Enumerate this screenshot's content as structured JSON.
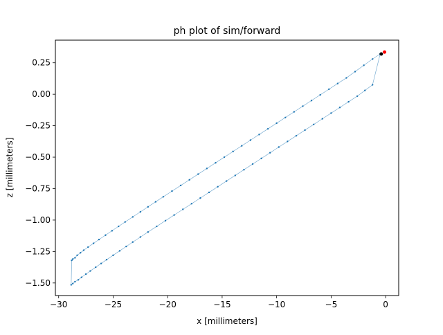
{
  "chart_data": {
    "type": "scatter",
    "title": "ph plot of sim/forward",
    "xlabel": "x [millimeters]",
    "ylabel": "z [millimeters]",
    "xlim": [
      -30.3,
      1.2
    ],
    "ylim": [
      -1.6,
      0.43
    ],
    "xticks": [
      -30,
      -25,
      -20,
      -15,
      -10,
      -5,
      0
    ],
    "yticks": [
      -1.5,
      -1.25,
      -1.0,
      -0.75,
      -0.5,
      -0.25,
      0.0,
      0.25
    ],
    "xtick_labels": [
      "−30",
      "−25",
      "−20",
      "−15",
      "−10",
      "−5",
      "0"
    ],
    "ytick_labels": [
      "−1.50",
      "−1.25",
      "−1.00",
      "−0.75",
      "−0.50",
      "−0.25",
      "0.00",
      "0.25"
    ],
    "grid": false,
    "series": [
      {
        "role": "trajectory",
        "color": "#1f77b4",
        "connected": true,
        "x": [
          -0.5,
          -1.2,
          -2.0,
          -2.8,
          -3.6,
          -4.4,
          -5.2,
          -6.0,
          -6.8,
          -7.6,
          -8.4,
          -9.2,
          -10.0,
          -10.8,
          -11.6,
          -12.4,
          -13.2,
          -14.0,
          -14.8,
          -15.6,
          -16.4,
          -17.2,
          -18.0,
          -18.8,
          -19.6,
          -20.4,
          -21.1,
          -21.8,
          -22.5,
          -23.2,
          -23.9,
          -24.5,
          -25.1,
          -25.7,
          -26.3,
          -26.8,
          -27.3,
          -27.7,
          -28.0,
          -28.3,
          -28.5,
          -28.7,
          -28.8,
          -28.85,
          -28.7,
          -28.5,
          -28.2,
          -27.9,
          -27.5,
          -27.1,
          -26.6,
          -26.1,
          -25.6,
          -25.0,
          -24.4,
          -23.8,
          -23.2,
          -22.5,
          -21.8,
          -21.0,
          -20.2,
          -19.4,
          -18.6,
          -17.8,
          -17.0,
          -16.2,
          -15.4,
          -14.6,
          -13.8,
          -13.0,
          -12.2,
          -11.4,
          -10.6,
          -9.8,
          -9.0,
          -8.2,
          -7.4,
          -6.6,
          -5.8,
          -5.0,
          -4.2,
          -3.4,
          -2.6,
          -1.9,
          -1.2,
          -0.5
        ],
        "y": [
          0.32,
          0.28,
          0.23,
          0.18,
          0.13,
          0.085,
          0.04,
          -0.005,
          -0.05,
          -0.095,
          -0.14,
          -0.185,
          -0.23,
          -0.275,
          -0.32,
          -0.365,
          -0.41,
          -0.455,
          -0.5,
          -0.545,
          -0.59,
          -0.635,
          -0.68,
          -0.725,
          -0.77,
          -0.815,
          -0.855,
          -0.895,
          -0.935,
          -0.975,
          -1.015,
          -1.05,
          -1.085,
          -1.12,
          -1.155,
          -1.185,
          -1.215,
          -1.24,
          -1.26,
          -1.28,
          -1.3,
          -1.31,
          -1.32,
          -1.515,
          -1.505,
          -1.49,
          -1.475,
          -1.455,
          -1.43,
          -1.405,
          -1.375,
          -1.345,
          -1.315,
          -1.28,
          -1.245,
          -1.21,
          -1.175,
          -1.135,
          -1.095,
          -1.05,
          -1.005,
          -0.96,
          -0.915,
          -0.87,
          -0.825,
          -0.78,
          -0.735,
          -0.69,
          -0.645,
          -0.6,
          -0.555,
          -0.51,
          -0.465,
          -0.42,
          -0.375,
          -0.33,
          -0.285,
          -0.24,
          -0.195,
          -0.15,
          -0.105,
          -0.06,
          -0.015,
          0.03,
          0.075,
          0.32
        ]
      },
      {
        "role": "start-marker",
        "color": "#000000",
        "x": [
          -0.4
        ],
        "y": [
          0.32
        ]
      },
      {
        "role": "end-marker",
        "color": "#ff0000",
        "x": [
          -0.1
        ],
        "y": [
          0.335
        ]
      }
    ]
  }
}
